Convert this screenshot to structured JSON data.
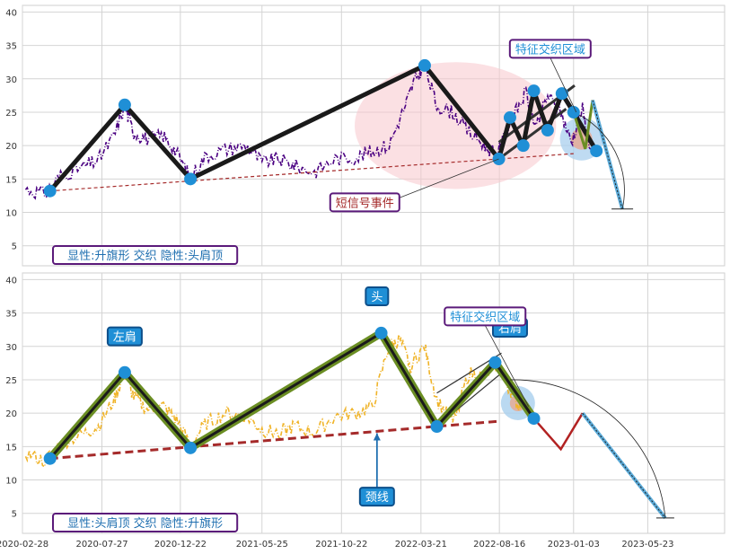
{
  "chart_data": [
    {
      "type": "line",
      "panel": "top",
      "ylim": [
        2,
        41
      ],
      "xlim": [
        "2020-02-28",
        "2023-10-15"
      ],
      "y_ticks": [
        5,
        10,
        15,
        20,
        25,
        30,
        35,
        40
      ],
      "grid": true,
      "price_color": "#4b0082",
      "price_style": "dash-dot",
      "price_series": [
        [
          "2020-03-05",
          13.5
        ],
        [
          "2020-04-10",
          12.8
        ],
        [
          "2020-05-10",
          15.5
        ],
        [
          "2020-06-20",
          16.8
        ],
        [
          "2020-07-20",
          17.8
        ],
        [
          "2020-08-20",
          21.5
        ],
        [
          "2020-09-08",
          26.0
        ],
        [
          "2020-09-25",
          22.0
        ],
        [
          "2020-10-20",
          21.0
        ],
        [
          "2020-11-20",
          21.5
        ],
        [
          "2020-12-15",
          19.0
        ],
        [
          "2021-01-10",
          15.3
        ],
        [
          "2021-02-10",
          18.5
        ],
        [
          "2021-03-20",
          19.5
        ],
        [
          "2021-04-25",
          20.0
        ],
        [
          "2021-05-25",
          17.5
        ],
        [
          "2021-06-25",
          18.0
        ],
        [
          "2021-07-25",
          17.0
        ],
        [
          "2021-09-01",
          16.0
        ],
        [
          "2021-10-10",
          18.0
        ],
        [
          "2021-11-20",
          18.3
        ],
        [
          "2021-12-20",
          19.2
        ],
        [
          "2022-01-20",
          20.0
        ],
        [
          "2022-02-20",
          26.0
        ],
        [
          "2022-03-10",
          30.0
        ],
        [
          "2022-03-28",
          32.0
        ],
        [
          "2022-04-20",
          26.0
        ],
        [
          "2022-05-20",
          25.0
        ],
        [
          "2022-06-20",
          22.0
        ],
        [
          "2022-07-20",
          20.0
        ],
        [
          "2022-08-10",
          18.5
        ],
        [
          "2022-09-10",
          24.0
        ],
        [
          "2022-10-05",
          28.0
        ],
        [
          "2022-10-25",
          22.5
        ],
        [
          "2022-11-15",
          27.5
        ],
        [
          "2022-12-10",
          25.0
        ],
        [
          "2022-12-30",
          20.5
        ],
        [
          "2023-01-20",
          25.5
        ],
        [
          "2023-02-05",
          19.5
        ]
      ],
      "zigzag": [
        [
          "2020-04-20",
          13.2
        ],
        [
          "2020-09-08",
          26.1
        ],
        [
          "2021-01-10",
          15.0
        ],
        [
          "2022-03-28",
          32.0
        ],
        [
          "2022-08-15",
          18.0
        ],
        [
          "2022-09-05",
          24.2
        ],
        [
          "2022-09-30",
          20.0
        ],
        [
          "2022-10-20",
          28.2
        ],
        [
          "2022-11-15",
          22.3
        ],
        [
          "2022-12-12",
          27.8
        ],
        [
          "2023-01-03",
          25.0
        ],
        [
          "2023-02-15",
          19.2
        ]
      ],
      "neckline": [
        [
          "2020-04-20",
          13.2
        ],
        [
          "2023-01-03",
          18.8
        ]
      ],
      "channel_lines": [
        [
          [
            "2022-08-15",
            20.5
          ],
          [
            "2023-01-05",
            29.0
          ]
        ],
        [
          [
            "2022-08-15",
            18.0
          ],
          [
            "2022-12-20",
            25.5
          ]
        ]
      ],
      "projection": [
        [
          "2023-01-03",
          25.0
        ],
        [
          "2023-01-25",
          19.5
        ],
        [
          "2023-02-08",
          26.8
        ],
        [
          "2023-04-05",
          10.5
        ]
      ],
      "ellipse": {
        "center": [
          "2022-05-25",
          23.0
        ],
        "rx_days": 190,
        "ry_value": 9.5
      },
      "annotations": [
        {
          "text": "特征交织区域",
          "at": [
            "2022-11-20",
            34.5
          ],
          "pointer_to": [
            "2023-01-08",
            25.0
          ]
        },
        {
          "text": "短信号事件",
          "at": [
            "2021-12-05",
            11.5
          ],
          "pointer_to": [
            "2022-08-15",
            18.0
          ]
        }
      ],
      "footer_label": "显性:升旗形 交织 隐性:头肩顶"
    },
    {
      "type": "line",
      "panel": "bottom",
      "ylim": [
        2,
        41
      ],
      "xlim": [
        "2020-02-28",
        "2023-10-15"
      ],
      "x_ticks": [
        "2020-02-28",
        "2020-07-27",
        "2020-12-22",
        "2021-05-25",
        "2021-10-22",
        "2022-03-21",
        "2022-08-16",
        "2023-01-03",
        "2023-05-23"
      ],
      "y_ticks": [
        5,
        10,
        15,
        20,
        25,
        30,
        35,
        40
      ],
      "grid": true,
      "price_color": "#f0b429",
      "price_style": "dash-dot",
      "price_series": [
        [
          "2020-03-05",
          14.0
        ],
        [
          "2020-04-10",
          12.8
        ],
        [
          "2020-05-10",
          15.5
        ],
        [
          "2020-06-20",
          16.8
        ],
        [
          "2020-07-20",
          18.0
        ],
        [
          "2020-08-20",
          22.0
        ],
        [
          "2020-09-08",
          26.0
        ],
        [
          "2020-09-25",
          22.5
        ],
        [
          "2020-10-20",
          20.5
        ],
        [
          "2020-11-20",
          21.0
        ],
        [
          "2020-12-15",
          19.0
        ],
        [
          "2021-01-10",
          15.3
        ],
        [
          "2021-02-10",
          18.5
        ],
        [
          "2021-03-20",
          20.0
        ],
        [
          "2021-04-25",
          19.5
        ],
        [
          "2021-05-25",
          17.5
        ],
        [
          "2021-06-25",
          17.0
        ],
        [
          "2021-07-25",
          18.0
        ],
        [
          "2021-09-01",
          17.0
        ],
        [
          "2021-10-10",
          19.5
        ],
        [
          "2021-11-20",
          20.0
        ],
        [
          "2021-12-20",
          21.0
        ],
        [
          "2022-01-20",
          30.0
        ],
        [
          "2022-02-10",
          31.0
        ],
        [
          "2022-03-01",
          27.0
        ],
        [
          "2022-03-28",
          30.0
        ],
        [
          "2022-04-20",
          22.0
        ],
        [
          "2022-05-20",
          18.5
        ],
        [
          "2022-06-20",
          26.0
        ],
        [
          "2022-07-20",
          25.5
        ],
        [
          "2022-08-15",
          27.5
        ],
        [
          "2022-09-05",
          23.5
        ],
        [
          "2022-09-25",
          20.5
        ]
      ],
      "hs_lines": [
        [
          "2020-04-20",
          13.2
        ],
        [
          "2020-09-08",
          26.1
        ],
        [
          "2021-01-10",
          14.8
        ],
        [
          "2022-01-05",
          32.0
        ],
        [
          "2022-04-20",
          18.0
        ],
        [
          "2022-08-08",
          27.6
        ],
        [
          "2022-10-20",
          19.2
        ]
      ],
      "neckline": [
        [
          "2020-04-20",
          13.2
        ],
        [
          "2022-08-16",
          18.8
        ]
      ],
      "shoulder_lines": [
        [
          [
            "2022-04-20",
            23.0
          ],
          [
            "2022-08-20",
            29.0
          ]
        ],
        [
          [
            "2022-04-20",
            18.0
          ],
          [
            "2022-08-20",
            26.0
          ]
        ]
      ],
      "projection": [
        [
          "2022-10-20",
          19.2
        ],
        [
          "2022-12-10",
          14.6
        ],
        [
          "2023-01-20",
          20.0
        ],
        [
          "2023-06-25",
          4.3
        ]
      ],
      "labels": [
        {
          "text": "左肩",
          "at": [
            "2020-09-08",
            31.5
          ]
        },
        {
          "text": "头",
          "at": [
            "2021-12-28",
            37.5
          ]
        },
        {
          "text": "右肩",
          "at": [
            "2022-09-05",
            32.8
          ]
        },
        {
          "text": "颈线",
          "at": [
            "2021-12-28",
            7.5
          ],
          "pointer_to": [
            "2021-12-28",
            17.0
          ]
        },
        {
          "text": "特征交织区域",
          "at": [
            "2022-07-20",
            34.5
          ],
          "pointer_to": [
            "2022-10-10",
            21.0
          ]
        }
      ],
      "footer_label": "显性:头肩顶 交织 隐性:升旗形"
    }
  ]
}
